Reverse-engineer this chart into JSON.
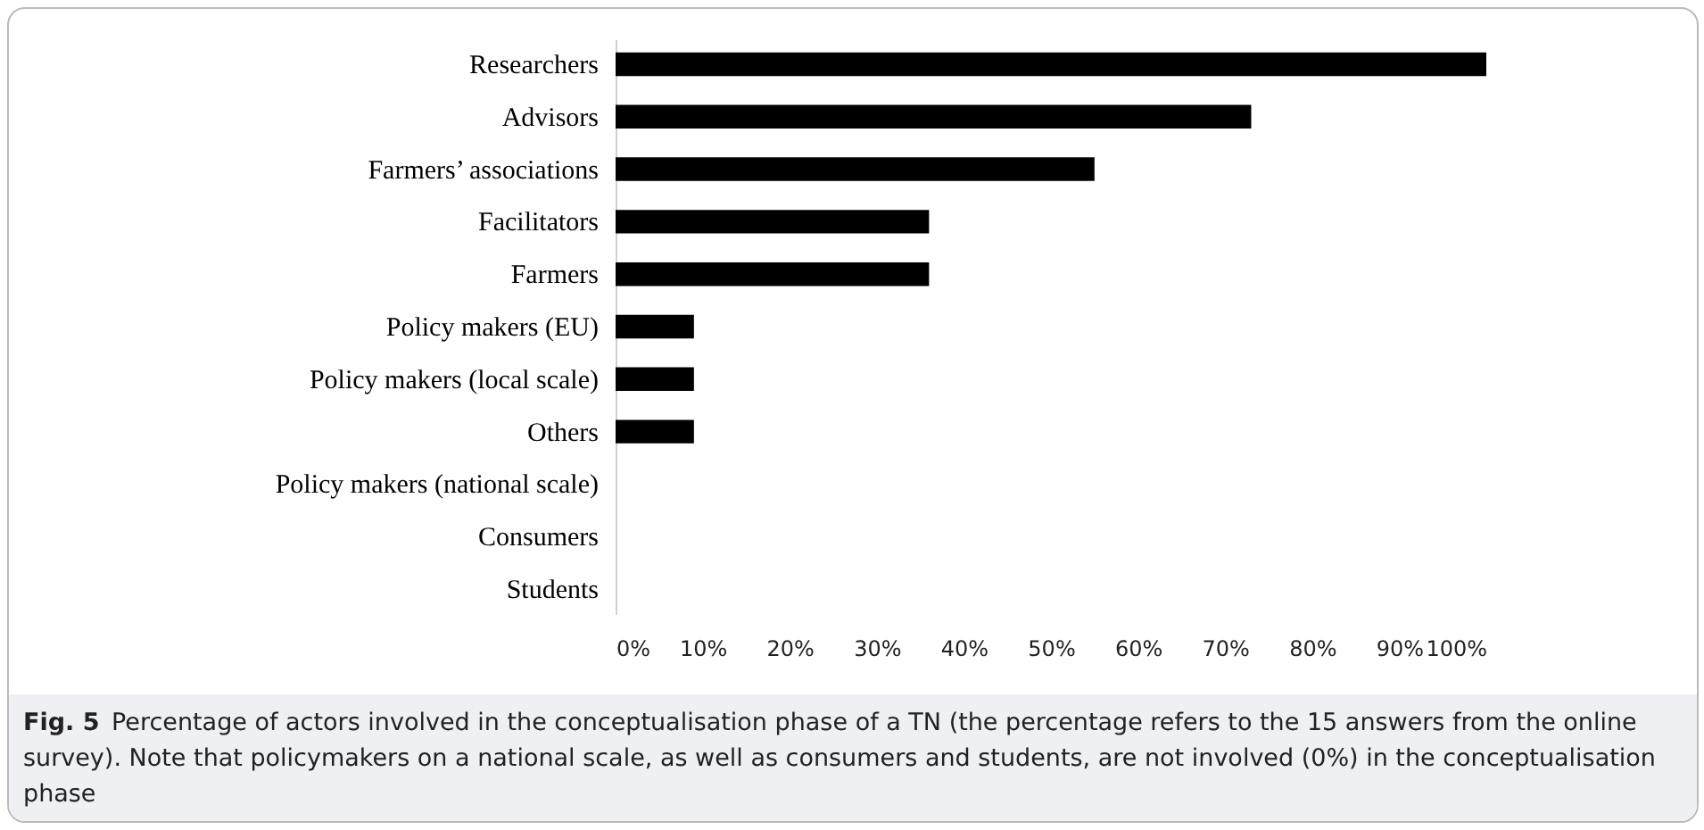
{
  "chart_data": {
    "type": "bar",
    "orientation": "horizontal",
    "categories": [
      "Researchers",
      "Advisors",
      "Farmers’ associations",
      "Facilitators",
      "Farmers",
      "Policy makers (EU)",
      "Policy makers (local scale)",
      "Others",
      "Policy makers (national scale)",
      "Consumers",
      "Students"
    ],
    "values": [
      100,
      73,
      55,
      36,
      36,
      9,
      9,
      9,
      0,
      0,
      0
    ],
    "color": "#000000",
    "xlim": [
      0,
      100
    ],
    "xticks": [
      {
        "value": 0,
        "label": "0%"
      },
      {
        "value": 10,
        "label": "10%"
      },
      {
        "value": 20,
        "label": "20%"
      },
      {
        "value": 30,
        "label": "30%"
      },
      {
        "value": 40,
        "label": "40%"
      },
      {
        "value": 50,
        "label": "50%"
      },
      {
        "value": 60,
        "label": "60%"
      },
      {
        "value": 70,
        "label": "70%"
      },
      {
        "value": 80,
        "label": "80%"
      },
      {
        "value": 90,
        "label": "90%"
      },
      {
        "value": 100,
        "label": "100%"
      }
    ],
    "grid": false,
    "annotations": [
      "Fig. 5  Percentage of actors involved in the conceptualisation phase of a TN (the percentage refers to the 15 answers from the online survey). Note that policymakers on a national scale, as well as consumers and students, are not involved (0%) in the conceptualisation phase"
    ]
  }
}
